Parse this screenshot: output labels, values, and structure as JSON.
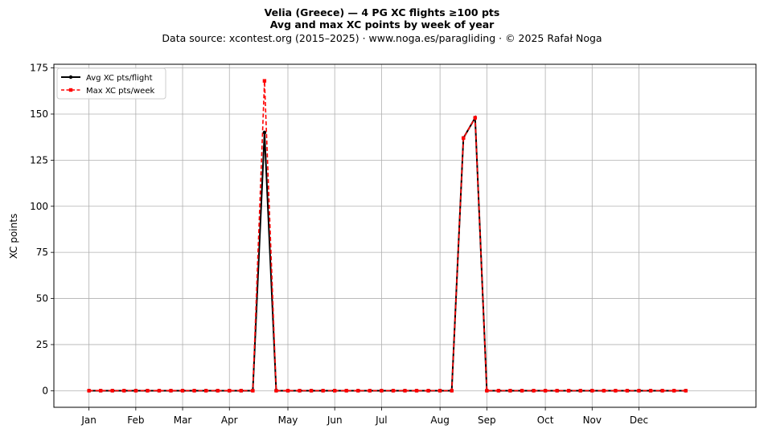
{
  "header": {
    "title": "Velia (Greece)  —  4 PG XC flights ≥100 pts",
    "subtitle": "Avg and max XC points by week of year",
    "source": "Data source: xcontest.org (2015–2025)  ·  www.noga.es/paragliding  ·  © 2025 Rafał Noga"
  },
  "chart_data": {
    "type": "line",
    "title": "Velia (Greece)  —  4 PG XC flights ≥100 pts",
    "subtitle": "Avg and max XC points by week of year",
    "xlabel": "",
    "ylabel": "XC points",
    "xlim": [
      -3,
      57
    ],
    "ylim": [
      -9,
      177
    ],
    "yticks": [
      0,
      25,
      50,
      75,
      100,
      125,
      150,
      175
    ],
    "xticks": [
      {
        "label": "Jan",
        "week": 0
      },
      {
        "label": "Feb",
        "week": 4
      },
      {
        "label": "Mar",
        "week": 8
      },
      {
        "label": "Apr",
        "week": 12
      },
      {
        "label": "May",
        "week": 17
      },
      {
        "label": "Jun",
        "week": 21
      },
      {
        "label": "Jul",
        "week": 25
      },
      {
        "label": "Aug",
        "week": 30
      },
      {
        "label": "Sep",
        "week": 34
      },
      {
        "label": "Oct",
        "week": 39
      },
      {
        "label": "Nov",
        "week": 43
      },
      {
        "label": "Dec",
        "week": 47
      }
    ],
    "grid": true,
    "legend_position": "top-left",
    "x": [
      0,
      1,
      2,
      3,
      4,
      5,
      6,
      7,
      8,
      9,
      10,
      11,
      12,
      13,
      14,
      15,
      16,
      17,
      18,
      19,
      20,
      21,
      22,
      23,
      24,
      25,
      26,
      27,
      28,
      29,
      30,
      31,
      32,
      33,
      34,
      35,
      36,
      37,
      38,
      39,
      40,
      41,
      42,
      43,
      44,
      45,
      46,
      47,
      48,
      49,
      50,
      51
    ],
    "series": [
      {
        "name": "Avg XC pts/flight",
        "color": "#000000",
        "style": "solid",
        "marker": "circle",
        "values": [
          0,
          0,
          0,
          0,
          0,
          0,
          0,
          0,
          0,
          0,
          0,
          0,
          0,
          0,
          0,
          140,
          0,
          0,
          0,
          0,
          0,
          0,
          0,
          0,
          0,
          0,
          0,
          0,
          0,
          0,
          0,
          0,
          137,
          148,
          0,
          0,
          0,
          0,
          0,
          0,
          0,
          0,
          0,
          0,
          0,
          0,
          0,
          0,
          0,
          0,
          0,
          0
        ]
      },
      {
        "name": "Max XC pts/week",
        "color": "#ff0000",
        "style": "dashed",
        "marker": "square",
        "values": [
          0,
          0,
          0,
          0,
          0,
          0,
          0,
          0,
          0,
          0,
          0,
          0,
          0,
          0,
          0,
          168,
          0,
          0,
          0,
          0,
          0,
          0,
          0,
          0,
          0,
          0,
          0,
          0,
          0,
          0,
          0,
          0,
          137,
          148,
          0,
          0,
          0,
          0,
          0,
          0,
          0,
          0,
          0,
          0,
          0,
          0,
          0,
          0,
          0,
          0,
          0,
          0
        ]
      }
    ]
  }
}
